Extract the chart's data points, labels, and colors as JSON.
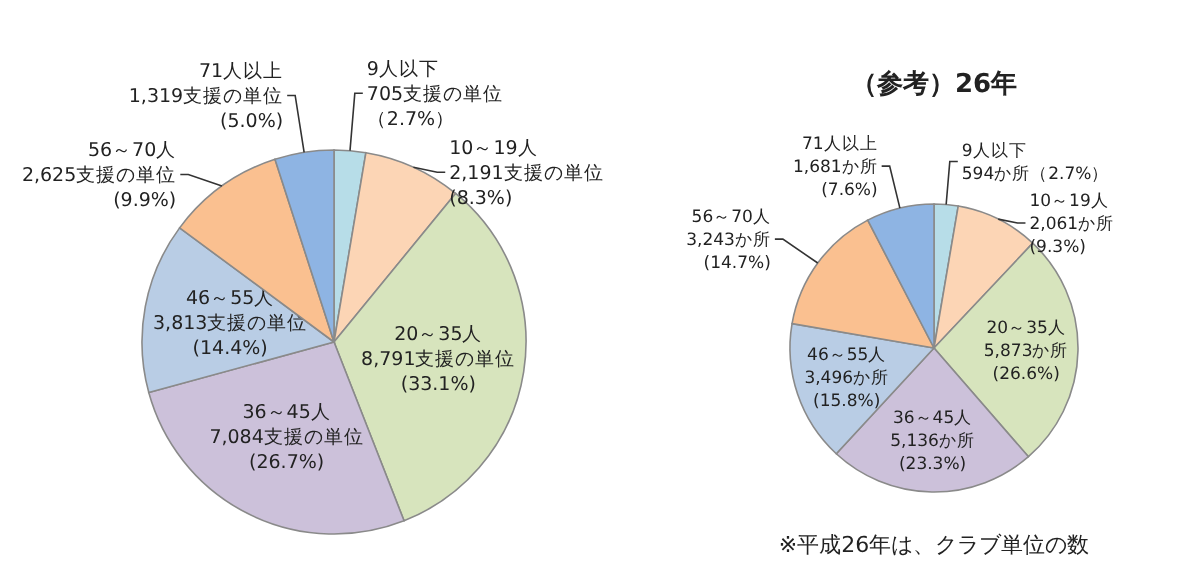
{
  "chart_data": [
    {
      "type": "pie",
      "categories": [
        "9人以下",
        "10～19人",
        "20～35人",
        "36～45人",
        "46～55人",
        "56～70人",
        "71人以上"
      ],
      "values": [
        705,
        2191,
        8791,
        7084,
        3813,
        2625,
        1319
      ],
      "colors": [
        "#b7dde8",
        "#fcd5b5",
        "#d7e4bd",
        "#ccc1da",
        "#b9cde5",
        "#fac090",
        "#8eb4e3"
      ],
      "value_labels": [
        "705支援の単位（2.7%）",
        "2,191支援の単位\n(8.3%)",
        "8,791支援の単位\n(33.1%)",
        "7,084支援の単位\n(26.7%)",
        "3,813支援の単位\n(14.4%)",
        "2,625支援の単位\n(9.9%)",
        "1,319支援の単位\n(5.0%)"
      ]
    },
    {
      "type": "pie",
      "title": "（参考）26年",
      "categories": [
        "9人以下",
        "10～19人",
        "20～35人",
        "36～45人",
        "46～55人",
        "56～70人",
        "71人以上"
      ],
      "values": [
        594,
        2061,
        5873,
        5136,
        3496,
        3243,
        1681
      ],
      "colors": [
        "#b7dde8",
        "#fcd5b5",
        "#d7e4bd",
        "#ccc1da",
        "#b9cde5",
        "#fac090",
        "#8eb4e3"
      ],
      "value_labels": [
        "594か所（2.7%）",
        "2,061か所\n(9.3%)",
        "5,873か所\n(26.6%)",
        "5,136か所\n(23.3%)",
        "3,496か所\n(15.8%)",
        "3,243か所\n(14.7%)",
        "1,681か所\n(7.6%)"
      ],
      "annotations": [
        "※平成26年は、クラブ単位の数"
      ]
    }
  ]
}
